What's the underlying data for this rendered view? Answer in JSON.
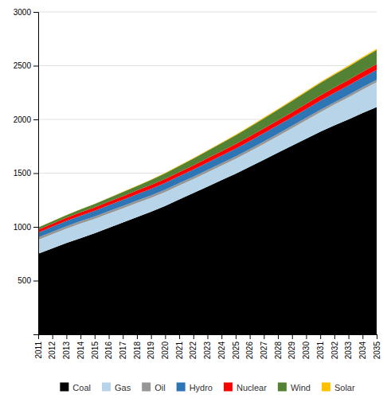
{
  "chart_data": {
    "type": "area",
    "stacked": true,
    "x": [
      2011,
      2012,
      2013,
      2014,
      2015,
      2016,
      2017,
      2018,
      2019,
      2020,
      2021,
      2022,
      2023,
      2024,
      2025,
      2026,
      2027,
      2028,
      2029,
      2030,
      2031,
      2032,
      2033,
      2034,
      2035
    ],
    "xlim": [
      2011,
      2035
    ],
    "xticks": [
      2011,
      2012,
      2013,
      2014,
      2015,
      2016,
      2017,
      2018,
      2019,
      2020,
      2021,
      2022,
      2023,
      2024,
      2025,
      2026,
      2027,
      2028,
      2029,
      2030,
      2031,
      2032,
      2033,
      2034,
      2035
    ],
    "ylim": [
      0,
      3000
    ],
    "yticks": [
      500,
      1000,
      1500,
      2000,
      2500,
      3000
    ],
    "grid": true,
    "legend": "bottom",
    "series": [
      {
        "name": "Coal",
        "color": "#000000",
        "values": [
          750,
          800,
          850,
          895,
          940,
          990,
          1040,
          1090,
          1140,
          1195,
          1255,
          1315,
          1375,
          1435,
          1495,
          1560,
          1625,
          1690,
          1755,
          1820,
          1885,
          1945,
          2000,
          2060,
          2115
        ]
      },
      {
        "name": "Gas",
        "color": "#b8d4e8",
        "values": [
          130,
          132,
          134,
          136,
          135,
          135,
          133,
          132,
          131,
          130,
          130,
          130,
          132,
          135,
          138,
          142,
          148,
          155,
          163,
          172,
          182,
          193,
          205,
          218,
          232
        ]
      },
      {
        "name": "Oil",
        "color": "#969696",
        "values": [
          22,
          22,
          22,
          22,
          22,
          22,
          22,
          22,
          22,
          22,
          22,
          22,
          22,
          22,
          22,
          22,
          22,
          22,
          22,
          22,
          22,
          22,
          22,
          22,
          22
        ]
      },
      {
        "name": "Hydro",
        "color": "#2e75b6",
        "values": [
          45,
          47,
          49,
          51,
          53,
          55,
          57,
          59,
          61,
          63,
          65,
          67,
          69,
          71,
          73,
          75,
          77,
          79,
          81,
          83,
          85,
          87,
          89,
          91,
          93
        ]
      },
      {
        "name": "Nuclear",
        "color": "#ff0000",
        "values": [
          28,
          29,
          30,
          31,
          32,
          33,
          34,
          35,
          36,
          37,
          38,
          39,
          40,
          41,
          42,
          43,
          44,
          45,
          46,
          47,
          48,
          49,
          50,
          51,
          52
        ]
      },
      {
        "name": "Wind",
        "color": "#548235",
        "values": [
          20,
          22,
          25,
          28,
          31,
          34,
          38,
          42,
          47,
          52,
          57,
          63,
          69,
          75,
          82,
          88,
          94,
          100,
          106,
          111,
          116,
          120,
          124,
          128,
          132
        ]
      },
      {
        "name": "Solar",
        "color": "#ffc000",
        "values": [
          1,
          1,
          2,
          2,
          2,
          2,
          3,
          3,
          4,
          4,
          5,
          5,
          6,
          6,
          7,
          7,
          8,
          8,
          9,
          9,
          10,
          10,
          11,
          11,
          12
        ]
      }
    ]
  }
}
